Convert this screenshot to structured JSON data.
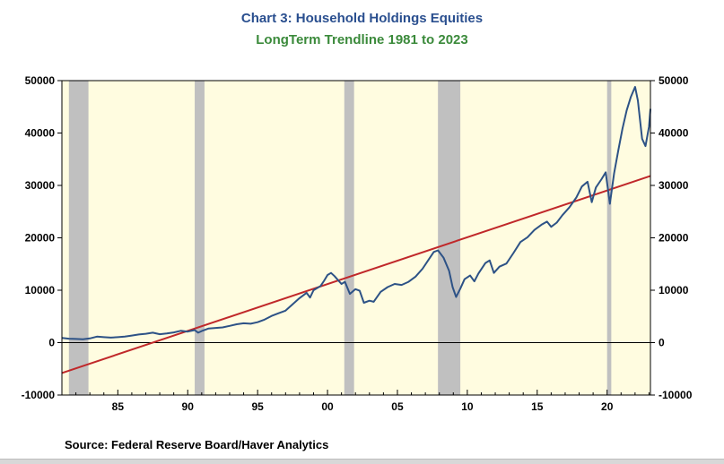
{
  "chart_data": {
    "type": "line",
    "title": "Chart 3: Household Holdings Equities",
    "subtitle": "LongTerm Trendline 1981 to 2023",
    "source": "Source:  Federal Reserve Board/Haver Analytics",
    "xlim": [
      1981,
      2023.1
    ],
    "ylim": [
      -10000,
      50000
    ],
    "y_ticks": [
      -10000,
      0,
      10000,
      20000,
      30000,
      40000,
      50000
    ],
    "y_tick_labels": [
      "-10000",
      "0",
      "10000",
      "20000",
      "30000",
      "40000",
      "50000"
    ],
    "x_ticks": [
      1985,
      1990,
      1995,
      2000,
      2005,
      2010,
      2015,
      2020
    ],
    "x_tick_labels": [
      "85",
      "90",
      "95",
      "00",
      "05",
      "10",
      "15",
      "20"
    ],
    "recessions": [
      [
        1981.5,
        1982.9
      ],
      [
        1990.5,
        1991.2
      ],
      [
        2001.2,
        2001.9
      ],
      [
        2007.9,
        2009.5
      ],
      [
        2020.0,
        2020.3
      ]
    ],
    "colors": {
      "background": "#fffce0",
      "recession": "#c0c0c0",
      "equities": "#2d5286",
      "trend": "#c0282a",
      "title": "#2a4f8f",
      "subtitle": "#3b8a3b"
    },
    "series": [
      {
        "values": [
          [
            1981.0,
            900
          ],
          [
            1981.5,
            750
          ],
          [
            1982.0,
            700
          ],
          [
            1982.5,
            650
          ],
          [
            1983.0,
            800
          ],
          [
            1983.5,
            1150
          ],
          [
            1984.0,
            1050
          ],
          [
            1984.5,
            950
          ],
          [
            1985.0,
            1050
          ],
          [
            1985.5,
            1150
          ],
          [
            1986.0,
            1350
          ],
          [
            1986.5,
            1550
          ],
          [
            1987.0,
            1700
          ],
          [
            1987.5,
            1900
          ],
          [
            1988.0,
            1600
          ],
          [
            1988.5,
            1750
          ],
          [
            1989.0,
            1950
          ],
          [
            1989.5,
            2250
          ],
          [
            1990.0,
            2100
          ],
          [
            1990.5,
            2400
          ],
          [
            1990.75,
            1900
          ],
          [
            1991.0,
            2200
          ],
          [
            1991.5,
            2700
          ],
          [
            1992.0,
            2800
          ],
          [
            1992.5,
            2900
          ],
          [
            1993.0,
            3200
          ],
          [
            1993.5,
            3500
          ],
          [
            1994.0,
            3700
          ],
          [
            1994.5,
            3600
          ],
          [
            1995.0,
            3900
          ],
          [
            1995.5,
            4400
          ],
          [
            1996.0,
            5100
          ],
          [
            1996.5,
            5600
          ],
          [
            1997.0,
            6100
          ],
          [
            1997.5,
            7300
          ],
          [
            1998.0,
            8500
          ],
          [
            1998.5,
            9500
          ],
          [
            1998.75,
            8600
          ],
          [
            1999.0,
            10000
          ],
          [
            1999.5,
            10800
          ],
          [
            1999.75,
            11800
          ],
          [
            2000.0,
            12900
          ],
          [
            2000.25,
            13300
          ],
          [
            2000.5,
            12700
          ],
          [
            2001.0,
            11200
          ],
          [
            2001.25,
            11600
          ],
          [
            2001.6,
            9300
          ],
          [
            2002.0,
            10200
          ],
          [
            2002.3,
            9900
          ],
          [
            2002.6,
            7600
          ],
          [
            2003.0,
            8000
          ],
          [
            2003.3,
            7800
          ],
          [
            2003.8,
            9700
          ],
          [
            2004.3,
            10600
          ],
          [
            2004.8,
            11200
          ],
          [
            2005.3,
            11000
          ],
          [
            2005.8,
            11600
          ],
          [
            2006.3,
            12600
          ],
          [
            2006.8,
            14100
          ],
          [
            2007.2,
            15700
          ],
          [
            2007.6,
            17300
          ],
          [
            2007.9,
            17600
          ],
          [
            2008.3,
            16200
          ],
          [
            2008.7,
            13700
          ],
          [
            2008.95,
            10600
          ],
          [
            2009.2,
            8700
          ],
          [
            2009.5,
            10300
          ],
          [
            2009.8,
            12100
          ],
          [
            2010.2,
            12800
          ],
          [
            2010.5,
            11700
          ],
          [
            2010.8,
            13200
          ],
          [
            2011.3,
            15200
          ],
          [
            2011.6,
            15700
          ],
          [
            2011.9,
            13300
          ],
          [
            2012.3,
            14500
          ],
          [
            2012.8,
            15100
          ],
          [
            2013.3,
            17100
          ],
          [
            2013.8,
            19200
          ],
          [
            2014.3,
            20100
          ],
          [
            2014.8,
            21500
          ],
          [
            2015.3,
            22500
          ],
          [
            2015.7,
            23100
          ],
          [
            2016.0,
            22100
          ],
          [
            2016.4,
            22900
          ],
          [
            2016.8,
            24300
          ],
          [
            2017.3,
            25800
          ],
          [
            2017.8,
            27700
          ],
          [
            2018.2,
            29800
          ],
          [
            2018.6,
            30700
          ],
          [
            2018.9,
            26800
          ],
          [
            2019.2,
            29600
          ],
          [
            2019.6,
            31200
          ],
          [
            2019.9,
            32500
          ],
          [
            2020.2,
            26500
          ],
          [
            2020.5,
            32300
          ],
          [
            2020.8,
            36700
          ],
          [
            2021.1,
            40800
          ],
          [
            2021.4,
            44300
          ],
          [
            2021.7,
            46900
          ],
          [
            2022.0,
            48800
          ],
          [
            2022.2,
            46200
          ],
          [
            2022.5,
            38900
          ],
          [
            2022.75,
            37500
          ],
          [
            2023.0,
            41200
          ],
          [
            2023.1,
            44600
          ]
        ]
      },
      {
        "values": [
          [
            1981.0,
            -5800
          ],
          [
            2023.1,
            31800
          ]
        ]
      }
    ]
  }
}
